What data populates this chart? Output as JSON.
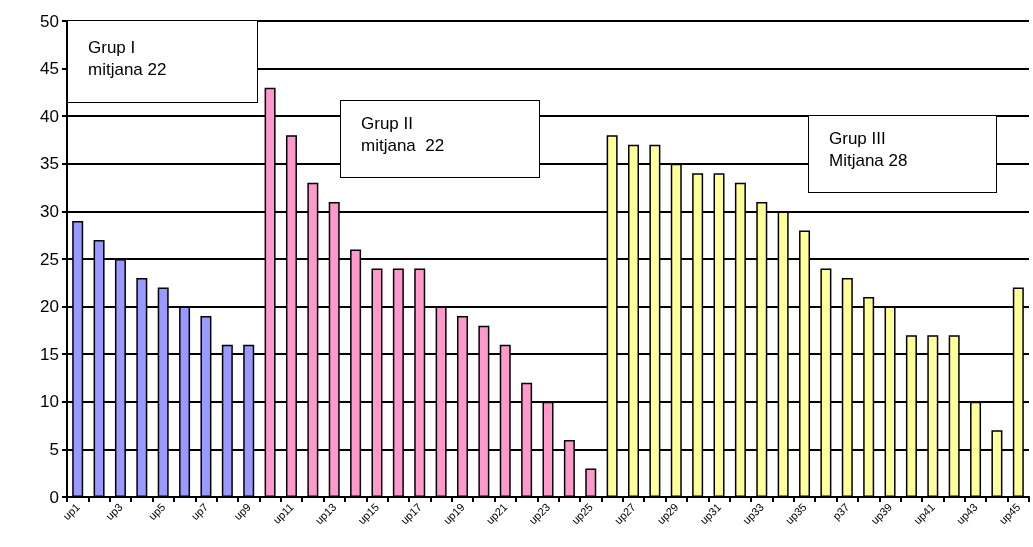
{
  "chart_data": {
    "type": "bar",
    "categories": [
      "up1",
      null,
      "up3",
      null,
      "up5",
      null,
      "up7",
      null,
      "up9",
      null,
      "up11",
      null,
      "up13",
      null,
      "up15",
      null,
      "up17",
      null,
      "up19",
      null,
      "up21",
      null,
      "up23",
      null,
      "up25",
      null,
      "up27",
      null,
      "up29",
      null,
      "up31",
      null,
      "up33",
      null,
      "up35",
      null,
      "p37",
      null,
      "up39",
      null,
      "up41",
      null,
      "up43",
      null,
      "up45"
    ],
    "values": [
      29,
      27,
      25,
      23,
      22,
      20,
      19,
      16,
      16,
      43,
      38,
      33,
      31,
      26,
      24,
      24,
      24,
      20,
      19,
      18,
      16,
      12,
      10,
      6,
      3,
      38,
      37,
      37,
      35,
      34,
      34,
      33,
      31,
      30,
      28,
      24,
      23,
      21,
      20,
      17,
      17,
      17,
      10,
      7,
      22
    ],
    "colors": [
      "#9999ff",
      "#9999ff",
      "#9999ff",
      "#9999ff",
      "#9999ff",
      "#9999ff",
      "#9999ff",
      "#9999ff",
      "#9999ff",
      "#ff99cc",
      "#ff99cc",
      "#ff99cc",
      "#ff99cc",
      "#ff99cc",
      "#ff99cc",
      "#ff99cc",
      "#ff99cc",
      "#ff99cc",
      "#ff99cc",
      "#ff99cc",
      "#ff99cc",
      "#ff99cc",
      "#ff99cc",
      "#ff99cc",
      "#ff99cc",
      "#ffff99",
      "#ffff99",
      "#ffff99",
      "#ffff99",
      "#ffff99",
      "#ffff99",
      "#ffff99",
      "#ffff99",
      "#ffff99",
      "#ffff99",
      "#ffff99",
      "#ffff99",
      "#ffff99",
      "#ffff99",
      "#ffff99",
      "#ffff99",
      "#ffff99",
      "#ffff99",
      "#ffff99",
      "#ffff99"
    ],
    "ylim": [
      0,
      50
    ],
    "yticks": [
      0,
      5,
      10,
      15,
      20,
      25,
      30,
      35,
      40,
      45,
      50
    ],
    "grid": "y",
    "annotations": [
      "Grup I\nmitjana 22",
      "Grup II\nmitjana  22",
      "Grup III\nMitjana 28"
    ]
  }
}
